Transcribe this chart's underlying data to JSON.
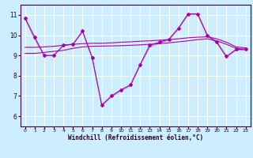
{
  "title": "",
  "xlabel": "Windchill (Refroidissement éolien,°C)",
  "bg_color": "#cceeff",
  "line_color": "#aa00aa",
  "grid_color": "#ffffff",
  "ylim": [
    5.5,
    11.5
  ],
  "xlim": [
    -0.5,
    23.5
  ],
  "yticks": [
    6,
    7,
    8,
    9,
    10,
    11
  ],
  "xticks": [
    0,
    1,
    2,
    3,
    4,
    5,
    6,
    7,
    8,
    9,
    10,
    11,
    12,
    13,
    14,
    15,
    16,
    17,
    18,
    19,
    20,
    21,
    22,
    23
  ],
  "series1": [
    10.85,
    9.9,
    9.0,
    9.0,
    9.5,
    9.55,
    10.2,
    8.9,
    6.55,
    7.0,
    7.3,
    7.55,
    8.55,
    9.5,
    9.65,
    9.8,
    10.35,
    11.05,
    11.05,
    10.0,
    9.65,
    8.95,
    9.3,
    9.3
  ],
  "series2": [
    9.1,
    9.1,
    9.15,
    9.2,
    9.25,
    9.35,
    9.42,
    9.45,
    9.46,
    9.47,
    9.48,
    9.5,
    9.52,
    9.55,
    9.58,
    9.62,
    9.67,
    9.72,
    9.78,
    9.82,
    9.72,
    9.55,
    9.35,
    9.3
  ],
  "series3": [
    9.4,
    9.4,
    9.42,
    9.45,
    9.5,
    9.55,
    9.58,
    9.6,
    9.6,
    9.62,
    9.65,
    9.67,
    9.7,
    9.72,
    9.75,
    9.78,
    9.82,
    9.87,
    9.9,
    9.92,
    9.82,
    9.65,
    9.42,
    9.37
  ],
  "series4": [
    10.8,
    9.8,
    9.0,
    9.0,
    9.5,
    9.55,
    10.15,
    8.85,
    6.5,
    6.95,
    7.25,
    7.5,
    8.5,
    9.4,
    9.6,
    9.75,
    10.3,
    11.0,
    11.0,
    9.95,
    9.6,
    8.9,
    9.25,
    9.25
  ]
}
